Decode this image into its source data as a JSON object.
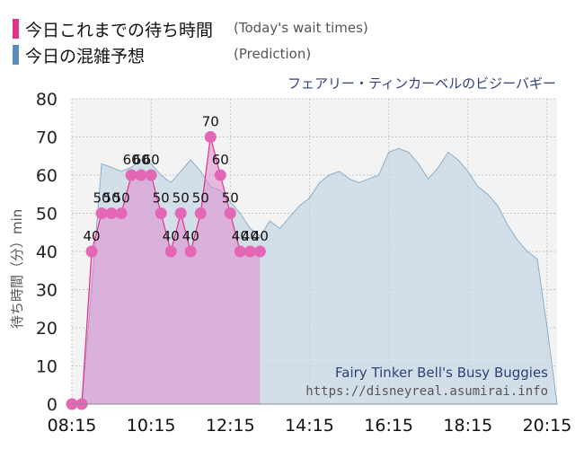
{
  "legend": {
    "today": {
      "label": "今日これまでの待ち時間",
      "label_en": "(Today's wait times)",
      "color": "#e0338a"
    },
    "prediction": {
      "label": "今日の混雑予想",
      "label_en": "(Prediction)",
      "color": "#5b8db8"
    }
  },
  "subtitle": "フェアリー・ティンカーベルのビジーバギー",
  "watermark": {
    "title_en": "Fairy Tinker Bell's Busy Buggies",
    "url": "https://disneyreal.asumirai.info"
  },
  "chart_data": {
    "type": "area",
    "ylabel": "待ち時間（分）min",
    "ylim": [
      0,
      80
    ],
    "yticks": [
      0,
      10,
      20,
      30,
      40,
      50,
      60,
      70,
      80
    ],
    "xtick_labels": [
      "08:15",
      "10:15",
      "12:15",
      "14:15",
      "16:15",
      "18:15",
      "20:15"
    ],
    "xtick_minutes": [
      495,
      615,
      735,
      855,
      975,
      1095,
      1215
    ],
    "xlim_minutes": [
      495,
      1230
    ],
    "grid": true,
    "series": [
      {
        "name": "今日の混雑予想",
        "kind": "prediction",
        "color": "#8aaecb",
        "points": [
          [
            495,
            0
          ],
          [
            510,
            0
          ],
          [
            525,
            30
          ],
          [
            540,
            63
          ],
          [
            555,
            62
          ],
          [
            570,
            61
          ],
          [
            585,
            62
          ],
          [
            600,
            64
          ],
          [
            615,
            63
          ],
          [
            630,
            60
          ],
          [
            645,
            58
          ],
          [
            660,
            61
          ],
          [
            675,
            64
          ],
          [
            690,
            61
          ],
          [
            705,
            57
          ],
          [
            720,
            56
          ],
          [
            735,
            53
          ],
          [
            750,
            50
          ],
          [
            765,
            46
          ],
          [
            780,
            44
          ],
          [
            795,
            48
          ],
          [
            810,
            46
          ],
          [
            825,
            49
          ],
          [
            840,
            52
          ],
          [
            855,
            54
          ],
          [
            870,
            58
          ],
          [
            885,
            60
          ],
          [
            900,
            61
          ],
          [
            915,
            59
          ],
          [
            930,
            58
          ],
          [
            945,
            59
          ],
          [
            960,
            60
          ],
          [
            975,
            66
          ],
          [
            990,
            67
          ],
          [
            1005,
            66
          ],
          [
            1020,
            63
          ],
          [
            1035,
            59
          ],
          [
            1050,
            62
          ],
          [
            1065,
            66
          ],
          [
            1080,
            64
          ],
          [
            1095,
            61
          ],
          [
            1110,
            57
          ],
          [
            1125,
            55
          ],
          [
            1140,
            52
          ],
          [
            1155,
            47
          ],
          [
            1170,
            43
          ],
          [
            1185,
            40
          ],
          [
            1200,
            38
          ],
          [
            1215,
            20
          ],
          [
            1230,
            0
          ]
        ]
      },
      {
        "name": "今日これまでの待ち時間",
        "kind": "today",
        "color": "#e467b6",
        "points": [
          [
            495,
            0
          ],
          [
            510,
            0
          ],
          [
            525,
            40
          ],
          [
            540,
            50
          ],
          [
            555,
            50
          ],
          [
            570,
            50
          ],
          [
            585,
            60
          ],
          [
            600,
            60
          ],
          [
            615,
            60
          ],
          [
            630,
            50
          ],
          [
            645,
            40
          ],
          [
            660,
            50
          ],
          [
            675,
            40
          ],
          [
            690,
            50
          ],
          [
            705,
            70
          ],
          [
            720,
            60
          ],
          [
            735,
            50
          ],
          [
            750,
            40
          ],
          [
            765,
            40
          ],
          [
            780,
            40
          ]
        ],
        "labels": [
          null,
          null,
          "40",
          "50",
          "50",
          "50",
          "60",
          "60",
          "60",
          "50",
          "40",
          "50",
          "40",
          "50",
          "70",
          "60",
          "50",
          "40",
          "40",
          "40"
        ]
      }
    ]
  }
}
